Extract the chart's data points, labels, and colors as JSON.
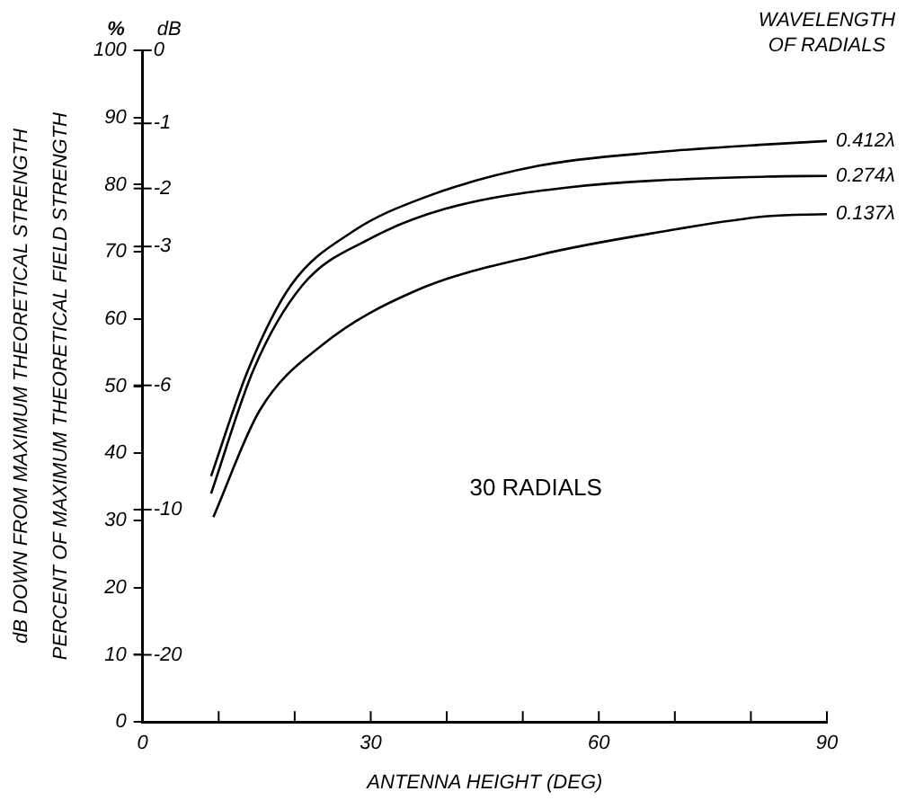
{
  "chart_data": {
    "type": "line",
    "xlabel": "ANTENNA HEIGHT (DEG)",
    "ylabel": "PERCENT OF MAXIMUM THEORETICAL FIELD STRENGTH",
    "y2label": "dB DOWN FROM MAXIMUM THEORETICAL STRENGTH",
    "legend_title": "WAVELENGTH OF RADIALS",
    "annotations": [
      "%",
      "dB",
      "30 RADIALS",
      "0",
      "-1",
      "-2",
      "-3",
      "-6",
      "-10",
      "-20"
    ],
    "series": [
      {
        "name": "0.412λ",
        "color": "#000000",
        "x": [
          9,
          13.9,
          19.5,
          27.6,
          37.3,
          52,
          68.3,
          82.2,
          90
        ],
        "values": [
          36.6,
          52.5,
          65,
          73,
          78.2,
          82.8,
          84.9,
          86,
          86.5
        ]
      },
      {
        "name": "0.274λ",
        "color": "#000000",
        "x": [
          9,
          14.6,
          21,
          30,
          39.8,
          56,
          82,
          90
        ],
        "values": [
          34,
          52.5,
          65,
          72,
          76.4,
          79.6,
          81.2,
          81.3
        ]
      },
      {
        "name": "0.137λ",
        "color": "#000000",
        "x": [
          9.3,
          15.4,
          23.7,
          35.9,
          52,
          68.3,
          82.2,
          90
        ],
        "values": [
          30.5,
          46.4,
          56.2,
          64.2,
          69.5,
          73,
          75.3,
          75.6
        ]
      }
    ],
    "xlim": [
      0,
      90
    ],
    "xticks": [
      0,
      {
        "value": 10,
        "label": null
      },
      {
        "value": 20,
        "label": null
      },
      30,
      {
        "value": 40,
        "label": null
      },
      {
        "value": 50,
        "label": null
      },
      60,
      {
        "value": 70,
        "label": null
      },
      {
        "value": 80,
        "label": null
      },
      90
    ],
    "ylim": [
      0,
      100
    ],
    "yticks": [
      0,
      10,
      20,
      30,
      40,
      50,
      60,
      70,
      80,
      90,
      100
    ],
    "grid": false,
    "legend": false,
    "marker": "none",
    "line_style": "solid"
  }
}
